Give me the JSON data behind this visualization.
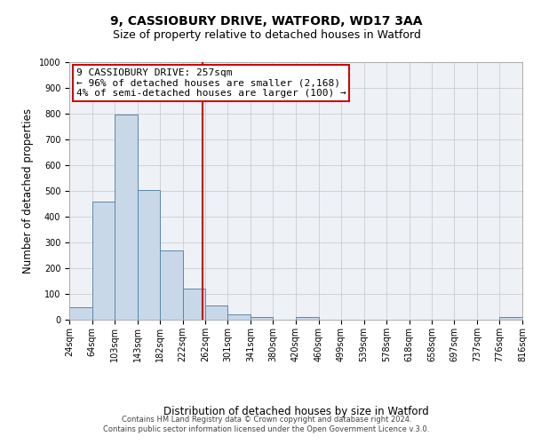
{
  "title_line1": "9, CASSIOBURY DRIVE, WATFORD, WD17 3AA",
  "title_line2": "Size of property relative to detached houses in Watford",
  "xlabel": "Distribution of detached houses by size in Watford",
  "ylabel": "Number of detached properties",
  "footer_line1": "Contains HM Land Registry data © Crown copyright and database right 2024.",
  "footer_line2": "Contains public sector information licensed under the Open Government Licence v.3.0.",
  "annotation_line1": "9 CASSIOBURY DRIVE: 257sqm",
  "annotation_line2": "← 96% of detached houses are smaller (2,168)",
  "annotation_line3": "4% of semi-detached houses are larger (100) →",
  "vline_x": 257,
  "bar_color": "#c8d8e8",
  "bar_edgecolor": "#5888aa",
  "vline_color": "#cc0000",
  "grid_color": "#cccccc",
  "bg_color": "#eef2f7",
  "bin_edges": [
    24,
    64,
    103,
    143,
    182,
    222,
    262,
    301,
    341,
    380,
    420,
    460,
    499,
    539,
    578,
    618,
    658,
    697,
    737,
    776,
    816
  ],
  "bar_heights": [
    50,
    460,
    795,
    505,
    270,
    120,
    55,
    20,
    12,
    0,
    12,
    0,
    0,
    0,
    0,
    0,
    0,
    0,
    0,
    10
  ],
  "ylim": [
    0,
    1000
  ],
  "yticks": [
    0,
    100,
    200,
    300,
    400,
    500,
    600,
    700,
    800,
    900,
    1000
  ],
  "title_fontsize": 10,
  "subtitle_fontsize": 9,
  "tick_fontsize": 7,
  "label_fontsize": 8.5,
  "annotation_fontsize": 8,
  "footer_fontsize": 6
}
